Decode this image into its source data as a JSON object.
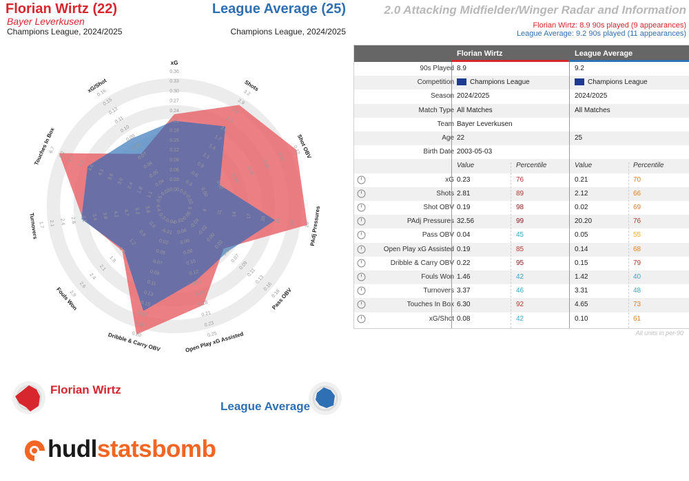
{
  "header": {
    "player_name": "Florian Wirtz (22)",
    "player_club": "Bayer Leverkusen",
    "player_comp": "Champions League, 2024/2025",
    "compare_name": "League Average (25)",
    "compare_comp": "Champions League, 2024/2025",
    "title": "2.0 Attacking Midfielder/Winger Radar and Information",
    "sub_player": "Florian Wirtz: 8.9 90s played (9 appearances)",
    "sub_compare": "League Average: 9.2 90s played (11 appearances)"
  },
  "colors": {
    "player": "#d7262e",
    "player_fill": "#e8696e",
    "compare": "#2f6fb3",
    "compare_fill": "#5a8fc7",
    "overlap": "#6a6fa5"
  },
  "chart_data": {
    "type": "radar",
    "metrics": [
      {
        "label": "xG",
        "ticks": [
          "0.00",
          "0.03",
          "0.06",
          "0.09",
          "0.12",
          "0.15",
          "0.18",
          "0.21",
          "0.24",
          "0.27",
          "0.30",
          "0.33",
          "0.36"
        ]
      },
      {
        "label": "Shots",
        "ticks": [
          "0.0",
          "0.3",
          "0.6",
          "0.9",
          "1.1",
          "1.4",
          "1.7",
          "2.0",
          "2.3",
          "2.6",
          "2.9",
          "3.2"
        ]
      },
      {
        "label": "Shot OBV",
        "ticks": [
          "-0.02",
          "0.00",
          "0.02",
          "0.04",
          "0.06",
          "0.08",
          "0.10",
          "0.12"
        ]
      },
      {
        "label": "PAdj Pressures",
        "ticks": [
          "5",
          "8",
          "11",
          "14",
          "17",
          "20",
          "22",
          "24",
          "26"
        ]
      },
      {
        "label": "Pass OBV",
        "ticks": [
          "-0.06",
          "-0.04",
          "-0.02",
          "0.00",
          "0.02",
          "0.05",
          "0.07",
          "0.09",
          "0.11",
          "0.13",
          "0.16",
          "0.18"
        ]
      },
      {
        "label": "Open Play xG Assisted",
        "ticks": [
          "0.02",
          "0.04",
          "0.06",
          "0.08",
          "0.10",
          "0.12",
          "0.14",
          "0.16",
          "0.18",
          "0.21",
          "0.23",
          "0.25"
        ]
      },
      {
        "label": "Dribble & Carry OBV",
        "ticks": [
          "-0.04",
          "-0.01",
          "0.02",
          "0.05",
          "0.07",
          "0.09",
          "0.11",
          "0.13",
          "0.15",
          "0.16",
          "0.18",
          "0.20"
        ]
      },
      {
        "label": "Fouls Won",
        "ticks": [
          "0.3",
          "0.6",
          "0.9",
          "1.2",
          "1.5",
          "1.9",
          "2.1",
          "2.4",
          "2.6",
          "2.9"
        ]
      },
      {
        "label": "Turnovers",
        "ticks": [
          "6.4",
          "5.8",
          "5.2",
          "4.7",
          "4.2",
          "3.8",
          "3.4",
          "3.1",
          "2.8",
          "2.4",
          "2.1",
          "1.7"
        ]
      },
      {
        "label": "Touches In Box",
        "ticks": [
          "0.5",
          "1.1",
          "1.8",
          "2.4",
          "3.0",
          "3.6",
          "4.1",
          "4.6",
          "5.2",
          "5.7",
          "6.2",
          "6.7"
        ]
      },
      {
        "label": "xG/Shot",
        "ticks": [
          "0.03",
          "0.04",
          "0.05",
          "0.06",
          "0.07",
          "0.08",
          "0.09",
          "0.10",
          "0.11",
          "0.13",
          "0.15",
          "0.16"
        ]
      }
    ],
    "series": [
      {
        "name": "Florian Wirtz",
        "values": [
          0.23,
          2.81,
          0.19,
          32.56,
          0.04,
          0.19,
          0.22,
          1.46,
          3.37,
          6.3,
          0.08
        ]
      },
      {
        "name": "League Average",
        "values": [
          0.21,
          2.12,
          0.02,
          20.2,
          0.05,
          0.14,
          0.15,
          1.42,
          3.31,
          4.65,
          0.1
        ]
      }
    ]
  },
  "table": {
    "col_player": "Florian Wirtz",
    "col_compare": "League Average",
    "info": [
      {
        "label": "90s Played",
        "p": "8.9",
        "c": "9.2"
      },
      {
        "label": "Competition",
        "p": "Champions League",
        "c": "Champions League",
        "flag": true
      },
      {
        "label": "Season",
        "p": "2024/2025",
        "c": "2024/2025"
      },
      {
        "label": "Match Type",
        "p": "All Matches",
        "c": "All Matches"
      },
      {
        "label": "Team",
        "p": "Bayer Leverkusen",
        "c": ""
      },
      {
        "label": "Age",
        "p": "22",
        "c": "25"
      },
      {
        "label": "Birth Date",
        "p": "2003-05-03",
        "c": ""
      }
    ],
    "value_label": "Value",
    "percentile_label": "Percentile",
    "metrics": [
      {
        "label": "xG",
        "pv": "0.23",
        "pp": "76",
        "pc": "#b03a2e",
        "cv": "0.21",
        "cp": "70",
        "cc": "#d9822b"
      },
      {
        "label": "Shots",
        "pv": "2.81",
        "pp": "89",
        "pc": "#b03a2e",
        "cv": "2.12",
        "cp": "66",
        "cc": "#d9822b"
      },
      {
        "label": "Shot OBV",
        "pv": "0.19",
        "pp": "98",
        "pc": "#8b1a1a",
        "cv": "0.02",
        "cp": "69",
        "cc": "#d9822b"
      },
      {
        "label": "PAdj Pressures",
        "pv": "32.56",
        "pp": "99",
        "pc": "#8b1a1a",
        "cv": "20.20",
        "cp": "76",
        "cc": "#b03a2e"
      },
      {
        "label": "Pass OBV",
        "pv": "0.04",
        "pp": "45",
        "pc": "#3aa6c9",
        "cv": "0.05",
        "cp": "55",
        "cc": "#e6b325"
      },
      {
        "label": "Open Play xG Assisted",
        "pv": "0.19",
        "pp": "85",
        "pc": "#b03a2e",
        "cv": "0.14",
        "cp": "68",
        "cc": "#d9822b"
      },
      {
        "label": "Dribble & Carry OBV",
        "pv": "0.22",
        "pp": "95",
        "pc": "#8b1a1a",
        "cv": "0.15",
        "cp": "79",
        "cc": "#b03a2e"
      },
      {
        "label": "Fouls Won",
        "pv": "1.46",
        "pp": "42",
        "pc": "#3aa6c9",
        "cv": "1.42",
        "cp": "40",
        "cc": "#3aa6c9"
      },
      {
        "label": "Turnovers",
        "pv": "3.37",
        "pp": "46",
        "pc": "#3aa6c9",
        "cv": "3.31",
        "cp": "48",
        "cc": "#3aa6c9"
      },
      {
        "label": "Touches In Box",
        "pv": "6.30",
        "pp": "92",
        "pc": "#b03a2e",
        "cv": "4.65",
        "cp": "73",
        "cc": "#d9822b"
      },
      {
        "label": "xG/Shot",
        "pv": "0.08",
        "pp": "42",
        "pc": "#3aa6c9",
        "cv": "0.10",
        "cp": "61",
        "cc": "#d9822b"
      }
    ],
    "units_note": "All units in per-90"
  },
  "legend": {
    "player": "Florian Wirtz",
    "compare": "League Average"
  },
  "logo": {
    "part1": "hudl",
    "part2": "statsbomb"
  }
}
